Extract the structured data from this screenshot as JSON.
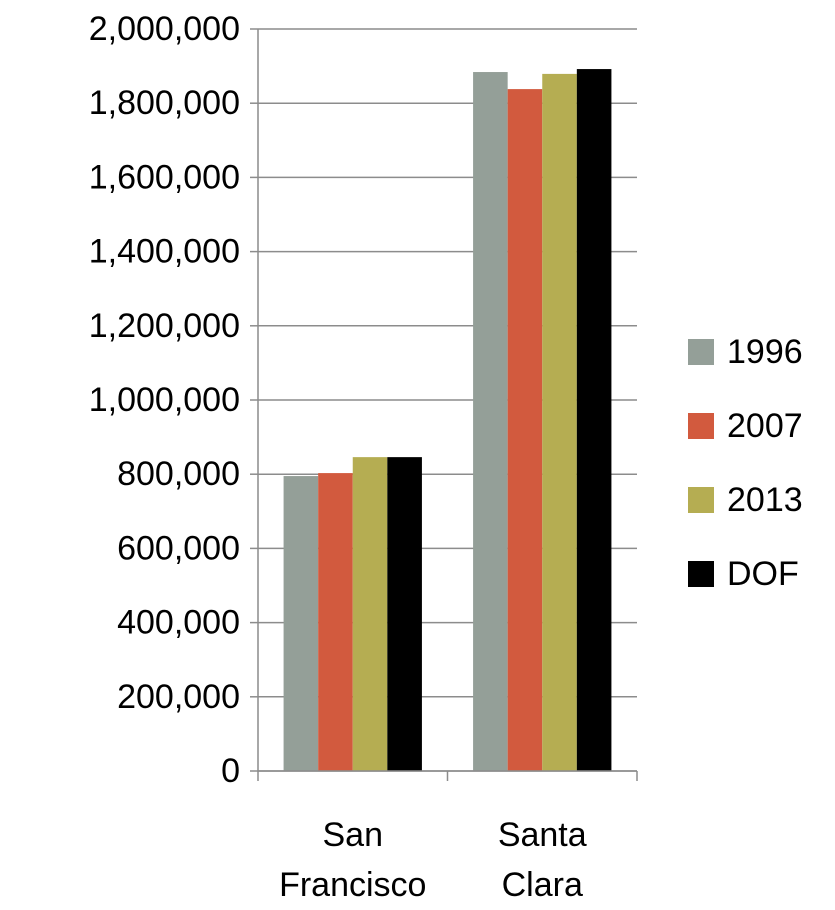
{
  "chart_data": {
    "type": "bar",
    "categories": [
      "San Francisco",
      "Santa Clara"
    ],
    "series": [
      {
        "name": "1996",
        "color": "#949f98",
        "values": [
          795000,
          1884000
        ]
      },
      {
        "name": "2007",
        "color": "#d25a3e",
        "values": [
          803000,
          1838000
        ]
      },
      {
        "name": "2013",
        "color": "#b5ad52",
        "values": [
          846000,
          1879000
        ]
      },
      {
        "name": "DOF",
        "color": "#000000",
        "values": [
          846000,
          1892000
        ]
      }
    ],
    "ylim": [
      0,
      2000000
    ],
    "yticks": [
      0,
      {
        "value": 200000,
        "label": "200,000"
      },
      {
        "value": 400000,
        "label": "400,000"
      },
      {
        "value": 600000,
        "label": "600,000"
      },
      {
        "value": 800000,
        "label": "800,000"
      },
      {
        "value": 1000000,
        "label": "1,000,000"
      },
      {
        "value": 1200000,
        "label": "1,200,000"
      },
      {
        "value": 1400000,
        "label": "1,400,000"
      },
      {
        "value": 1600000,
        "label": "1,600,000"
      },
      {
        "value": 1800000,
        "label": "1,800,000"
      },
      {
        "value": 2000000,
        "label": "2,000,000"
      }
    ],
    "grid": true,
    "legend": "right"
  }
}
